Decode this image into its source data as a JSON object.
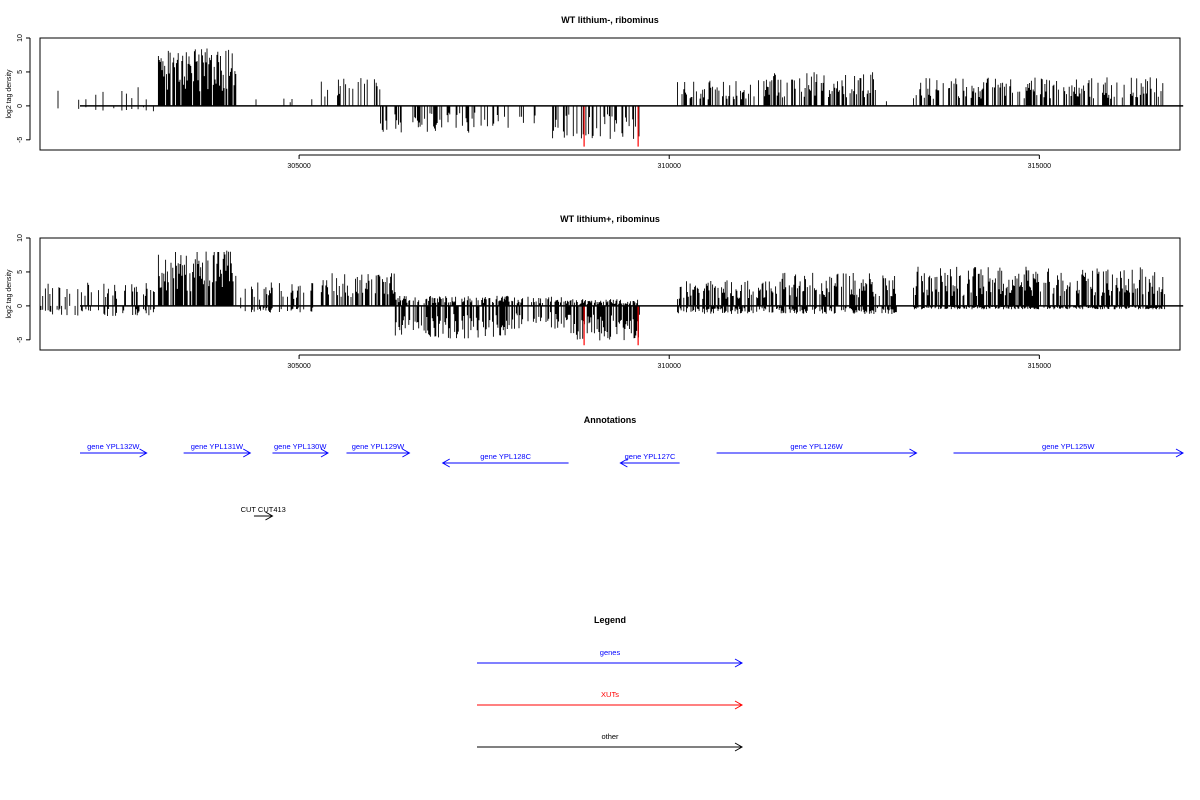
{
  "chart_data": [
    {
      "type": "bar",
      "title": "WT lithium-, ribominus",
      "ylabel": "log2 tag density",
      "xlim": [
        301500,
        316900
      ],
      "ylim": [
        -6.5,
        10
      ],
      "xticks": [
        305000,
        310000,
        315000
      ],
      "yticks": [
        -5,
        0,
        5,
        10
      ],
      "series_colors": {
        "default": "#000000",
        "xut": "#ff0000"
      },
      "profile": [
        {
          "x": [
            301500,
            303100
          ],
          "pos": 2.8,
          "neg": -0.8,
          "density": 0.15
        },
        {
          "x": [
            303100,
            304150
          ],
          "pos": 8.5,
          "neg": 0,
          "density": 1.0
        },
        {
          "x": [
            304150,
            305200
          ],
          "pos": 2.0,
          "neg": 0,
          "density": 0.05
        },
        {
          "x": [
            305300,
            306100
          ],
          "pos": 4.2,
          "neg": 0,
          "density": 0.4
        },
        {
          "x": [
            306100,
            307300
          ],
          "pos": 0,
          "neg": -4.0,
          "density": 0.4
        },
        {
          "x": [
            307300,
            308200
          ],
          "pos": 0,
          "neg": -3.5,
          "density": 0.25
        },
        {
          "x": [
            308400,
            309600
          ],
          "pos": 0,
          "neg": -5.0,
          "density": 0.45
        },
        {
          "x": [
            310100,
            311300
          ],
          "pos": 3.8,
          "neg": 0,
          "density": 0.55
        },
        {
          "x": [
            311300,
            312800
          ],
          "pos": 5.0,
          "neg": 0,
          "density": 0.7
        },
        {
          "x": [
            312800,
            313000
          ],
          "pos": 2.0,
          "neg": 0,
          "density": 0.2
        },
        {
          "x": [
            313300,
            316700
          ],
          "pos": 4.2,
          "neg": 0,
          "density": 0.6
        }
      ],
      "xut_bars": [
        {
          "x": 308850,
          "y": -6.0
        },
        {
          "x": 309580,
          "y": -6.0
        }
      ]
    },
    {
      "type": "bar",
      "title": "WT lithium+, ribominus",
      "ylabel": "log2 tag density",
      "xlim": [
        301500,
        316900
      ],
      "ylim": [
        -6.5,
        10
      ],
      "xticks": [
        305000,
        310000,
        315000
      ],
      "yticks": [
        -5,
        0,
        5,
        10
      ],
      "series_colors": {
        "default": "#000000",
        "xut": "#ff0000"
      },
      "profile": [
        {
          "x": [
            301500,
            303100
          ],
          "pos": 3.5,
          "neg": -1.5,
          "density": 0.45
        },
        {
          "x": [
            303100,
            304150
          ],
          "pos": 8.2,
          "neg": 0,
          "density": 1.0
        },
        {
          "x": [
            304150,
            305200
          ],
          "pos": 3.5,
          "neg": -1.0,
          "density": 0.4
        },
        {
          "x": [
            305300,
            306300
          ],
          "pos": 5.0,
          "neg": 0,
          "density": 0.7
        },
        {
          "x": [
            306300,
            307800
          ],
          "pos": 1.5,
          "neg": -4.8,
          "density": 0.8
        },
        {
          "x": [
            307800,
            308600
          ],
          "pos": 1.5,
          "neg": -3.5,
          "density": 0.4
        },
        {
          "x": [
            308600,
            309600
          ],
          "pos": 1.0,
          "neg": -5.2,
          "density": 0.9
        },
        {
          "x": [
            310100,
            311500
          ],
          "pos": 3.8,
          "neg": -1.2,
          "density": 0.65
        },
        {
          "x": [
            311500,
            313100
          ],
          "pos": 5.0,
          "neg": -1.2,
          "density": 0.7
        },
        {
          "x": [
            313300,
            316700
          ],
          "pos": 5.8,
          "neg": -0.5,
          "density": 0.85
        }
      ],
      "xut_bars": [
        {
          "x": 308850,
          "y": -5.8
        },
        {
          "x": 309580,
          "y": -5.8
        }
      ]
    }
  ],
  "annotations": {
    "title": "Annotations",
    "xlim": [
      301500,
      316900
    ],
    "genes": [
      {
        "label": "gene YPL132W",
        "start": 301500,
        "end": 302400,
        "strand": "+",
        "row": 0
      },
      {
        "label": "gene YPL131W",
        "start": 302900,
        "end": 303800,
        "strand": "+",
        "row": 0
      },
      {
        "label": "gene YPL130W",
        "start": 304100,
        "end": 304850,
        "strand": "+",
        "row": 0
      },
      {
        "label": "gene YPL129W",
        "start": 305100,
        "end": 305950,
        "strand": "+",
        "row": 0
      },
      {
        "label": "gene YPL128C",
        "start": 306400,
        "end": 308100,
        "strand": "-",
        "row": 1
      },
      {
        "label": "gene YPL127C",
        "start": 308800,
        "end": 309600,
        "strand": "-",
        "row": 1
      },
      {
        "label": "gene YPL126W",
        "start": 310100,
        "end": 312800,
        "strand": "+",
        "row": 0
      },
      {
        "label": "gene YPL125W",
        "start": 313300,
        "end": 316400,
        "strand": "+",
        "row": 0
      }
    ],
    "other": [
      {
        "label": "CUT CUT413",
        "start": 303850,
        "end": 304100,
        "strand": "+",
        "row": 2
      }
    ],
    "colors": {
      "genes": "#0000ff",
      "other": "#000000"
    }
  },
  "legend": {
    "title": "Legend",
    "items": [
      {
        "label": "genes",
        "color": "#0000ff"
      },
      {
        "label": "XUTs",
        "color": "#ff0000"
      },
      {
        "label": "other",
        "color": "#000000"
      }
    ]
  }
}
